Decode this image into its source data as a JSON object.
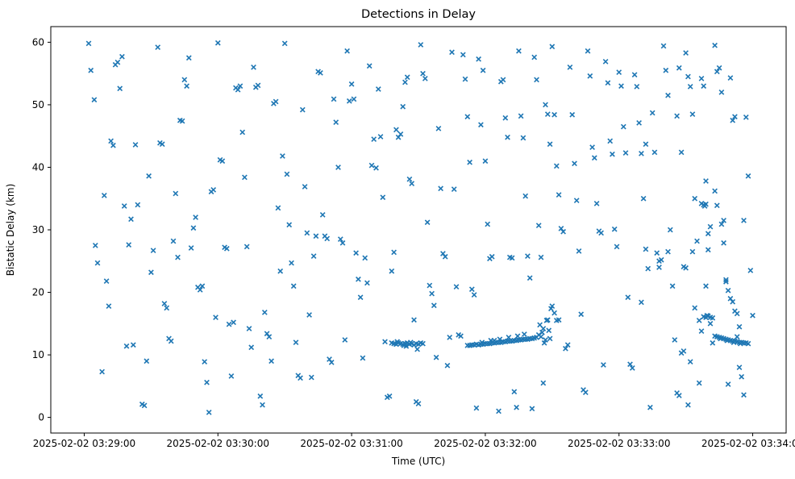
{
  "window": {
    "title": "Detections in Delay"
  },
  "chart_data": {
    "type": "scatter",
    "title": "Detections in Delay",
    "xlabel": "Time (UTC)",
    "ylabel": "Bistatic Delay (km)",
    "marker": "x",
    "marker_color": "#1f77b4",
    "background_color": "#ffffff",
    "grid": false,
    "legend": "none",
    "x_unit": "seconds after 2025-02-02 03:29:00 UTC",
    "xlim": [
      -15,
      315
    ],
    "ylim": [
      -2.5,
      62.5
    ],
    "x_ticks": [
      {
        "t": 0,
        "label": "2025-02-02 03:29:00"
      },
      {
        "t": 60,
        "label": "2025-02-02 03:30:00"
      },
      {
        "t": 120,
        "label": "2025-02-02 03:31:00"
      },
      {
        "t": 180,
        "label": "2025-02-02 03:32:00"
      },
      {
        "t": 240,
        "label": "2025-02-02 03:33:00"
      },
      {
        "t": 300,
        "label": "2025-02-02 03:34:00"
      }
    ],
    "y_ticks": [
      0,
      10,
      20,
      30,
      40,
      50,
      60
    ],
    "points": [
      [
        2,
        59.8
      ],
      [
        3,
        55.5
      ],
      [
        4.5,
        50.8
      ],
      [
        5,
        27.5
      ],
      [
        6,
        24.7
      ],
      [
        8,
        7.3
      ],
      [
        9,
        35.5
      ],
      [
        10,
        21.8
      ],
      [
        11,
        17.8
      ],
      [
        12,
        44.2
      ],
      [
        13,
        43.5
      ],
      [
        14,
        56.4
      ],
      [
        15,
        56.8
      ],
      [
        16,
        52.6
      ],
      [
        17,
        57.7
      ],
      [
        18,
        33.8
      ],
      [
        19,
        11.4
      ],
      [
        20,
        27.6
      ],
      [
        21,
        31.7
      ],
      [
        22,
        11.6
      ],
      [
        23,
        43.6
      ],
      [
        24,
        34
      ],
      [
        26,
        2.1
      ],
      [
        27,
        1.9
      ],
      [
        28,
        9
      ],
      [
        29,
        38.6
      ],
      [
        30,
        23.2
      ],
      [
        31,
        26.7
      ],
      [
        33,
        59.2
      ],
      [
        34,
        43.9
      ],
      [
        35,
        43.7
      ],
      [
        36,
        18.2
      ],
      [
        37,
        17.5
      ],
      [
        38,
        12.6
      ],
      [
        39,
        12.2
      ],
      [
        40,
        28.2
      ],
      [
        41,
        35.8
      ],
      [
        42,
        25.6
      ],
      [
        43,
        47.5
      ],
      [
        44,
        47.4
      ],
      [
        45,
        54
      ],
      [
        46,
        53
      ],
      [
        47,
        57.5
      ],
      [
        48,
        27.1
      ],
      [
        49,
        30.3
      ],
      [
        50,
        32
      ],
      [
        51,
        20.8
      ],
      [
        52,
        20.4
      ],
      [
        53,
        21
      ],
      [
        54,
        8.9
      ],
      [
        55,
        5.6
      ],
      [
        56,
        0.8
      ],
      [
        57,
        36.1
      ],
      [
        58,
        36.4
      ],
      [
        59,
        16
      ],
      [
        60,
        59.9
      ],
      [
        61,
        41.2
      ],
      [
        62,
        41
      ],
      [
        63,
        27.2
      ],
      [
        64,
        27
      ],
      [
        65,
        14.9
      ],
      [
        66,
        6.6
      ],
      [
        67,
        15.2
      ],
      [
        68,
        52.7
      ],
      [
        69,
        52.4
      ],
      [
        70,
        53
      ],
      [
        71,
        45.6
      ],
      [
        72,
        38.4
      ],
      [
        73,
        27.3
      ],
      [
        74,
        14.2
      ],
      [
        75,
        11.2
      ],
      [
        76,
        56
      ],
      [
        77,
        52.8
      ],
      [
        78,
        53.1
      ],
      [
        79,
        3.4
      ],
      [
        80,
        2
      ],
      [
        81,
        16.8
      ],
      [
        82,
        13.4
      ],
      [
        83,
        12.9
      ],
      [
        84,
        9
      ],
      [
        85,
        50.2
      ],
      [
        86,
        50.5
      ],
      [
        87,
        33.5
      ],
      [
        88,
        23.4
      ],
      [
        89,
        41.8
      ],
      [
        90,
        59.8
      ],
      [
        91,
        38.9
      ],
      [
        92,
        30.8
      ],
      [
        93,
        24.7
      ],
      [
        94,
        21
      ],
      [
        95,
        12
      ],
      [
        96,
        6.7
      ],
      [
        97,
        6.3
      ],
      [
        98,
        49.2
      ],
      [
        99,
        36.9
      ],
      [
        100,
        29.5
      ],
      [
        101,
        16.4
      ],
      [
        102,
        6.4
      ],
      [
        103,
        25.8
      ],
      [
        104,
        29
      ],
      [
        105,
        55.3
      ],
      [
        106,
        55.1
      ],
      [
        107,
        32.4
      ],
      [
        108,
        29
      ],
      [
        109,
        28.6
      ],
      [
        110,
        9.3
      ],
      [
        111,
        8.8
      ],
      [
        112,
        50.9
      ],
      [
        113,
        47.2
      ],
      [
        114,
        40
      ],
      [
        115,
        28.5
      ],
      [
        116,
        27.9
      ],
      [
        117,
        12.4
      ],
      [
        118,
        58.6
      ],
      [
        119,
        50.6
      ],
      [
        120,
        53.3
      ],
      [
        121,
        50.9
      ],
      [
        122,
        26.3
      ],
      [
        123,
        22.1
      ],
      [
        124,
        19.2
      ],
      [
        125,
        9.5
      ],
      [
        126,
        25.5
      ],
      [
        127,
        21.5
      ],
      [
        128,
        56.2
      ],
      [
        129,
        40.3
      ],
      [
        130,
        44.5
      ],
      [
        131,
        39.9
      ],
      [
        132,
        52.5
      ],
      [
        133,
        44.9
      ],
      [
        134,
        35.2
      ],
      [
        135,
        12.1
      ],
      [
        136,
        3.2
      ],
      [
        137,
        3.4
      ],
      [
        138,
        23.4
      ],
      [
        139,
        26.4
      ],
      [
        140,
        46
      ],
      [
        141,
        44.8
      ],
      [
        142,
        45.3
      ],
      [
        143,
        49.7
      ],
      [
        144,
        53.6
      ],
      [
        145,
        54.4
      ],
      [
        146,
        38.1
      ],
      [
        147,
        37.4
      ],
      [
        148,
        15.6
      ],
      [
        149,
        2.5
      ],
      [
        150,
        2.2
      ],
      [
        151,
        59.6
      ],
      [
        152,
        55
      ],
      [
        153,
        54.2
      ],
      [
        154,
        31.2
      ],
      [
        155,
        21.1
      ],
      [
        156,
        19.8
      ],
      [
        157,
        17.9
      ],
      [
        158,
        9.6
      ],
      [
        159,
        46.2
      ],
      [
        160,
        36.6
      ],
      [
        161,
        26.2
      ],
      [
        162,
        25.7
      ],
      [
        163,
        8.3
      ],
      [
        164,
        12.8
      ],
      [
        165,
        58.4
      ],
      [
        166,
        36.5
      ],
      [
        167,
        20.9
      ],
      [
        168,
        13.2
      ],
      [
        169,
        13
      ],
      [
        170,
        58
      ],
      [
        171,
        54.1
      ],
      [
        172,
        48.1
      ],
      [
        173,
        40.8
      ],
      [
        174,
        20.5
      ],
      [
        175,
        19.6
      ],
      [
        176,
        1.5
      ],
      [
        177,
        57.3
      ],
      [
        178,
        46.8
      ],
      [
        179,
        55.5
      ],
      [
        180,
        41
      ],
      [
        181,
        30.9
      ],
      [
        182,
        25.4
      ],
      [
        183,
        25.7
      ],
      [
        184,
        12.3
      ],
      [
        186,
        1
      ],
      [
        187,
        53.7
      ],
      [
        188,
        54
      ],
      [
        189,
        47.9
      ],
      [
        190,
        44.8
      ],
      [
        191,
        25.6
      ],
      [
        192,
        25.5
      ],
      [
        193,
        4.1
      ],
      [
        194,
        1.6
      ],
      [
        195,
        58.6
      ],
      [
        196,
        48.2
      ],
      [
        197,
        44.7
      ],
      [
        198,
        35.4
      ],
      [
        199,
        25.8
      ],
      [
        200,
        22.3
      ],
      [
        201,
        1.4
      ],
      [
        202,
        57.6
      ],
      [
        203,
        54
      ],
      [
        204,
        30.7
      ],
      [
        205,
        25.6
      ],
      [
        206,
        5.5
      ],
      [
        207,
        50
      ],
      [
        208,
        48.5
      ],
      [
        209,
        43.7
      ],
      [
        210,
        59.3
      ],
      [
        211,
        48.4
      ],
      [
        212,
        40.2
      ],
      [
        213,
        35.6
      ],
      [
        214,
        30.2
      ],
      [
        215,
        29.7
      ],
      [
        216,
        11
      ],
      [
        217,
        11.6
      ],
      [
        218,
        56
      ],
      [
        219,
        48.4
      ],
      [
        220,
        40.6
      ],
      [
        221,
        34.7
      ],
      [
        222,
        26.6
      ],
      [
        223,
        16.5
      ],
      [
        224,
        4.4
      ],
      [
        225,
        4
      ],
      [
        226,
        58.6
      ],
      [
        227,
        54.6
      ],
      [
        228,
        43.2
      ],
      [
        229,
        41.5
      ],
      [
        230,
        34.2
      ],
      [
        231,
        29.8
      ],
      [
        232,
        29.5
      ],
      [
        233,
        8.4
      ],
      [
        234,
        56.9
      ],
      [
        235,
        53.5
      ],
      [
        236,
        44.2
      ],
      [
        237,
        42.1
      ],
      [
        238,
        30.1
      ],
      [
        239,
        27.3
      ],
      [
        240,
        55.2
      ],
      [
        241,
        53
      ],
      [
        242,
        46.5
      ],
      [
        243,
        42.3
      ],
      [
        244,
        19.2
      ],
      [
        245,
        8.5
      ],
      [
        246,
        7.9
      ],
      [
        247,
        54.8
      ],
      [
        248,
        52.9
      ],
      [
        249,
        47.1
      ],
      [
        250,
        42.2
      ],
      [
        251,
        35
      ],
      [
        252,
        26.9
      ],
      [
        253,
        23.8
      ],
      [
        254,
        1.6
      ],
      [
        255,
        48.7
      ],
      [
        256,
        42.4
      ],
      [
        257,
        26.3
      ],
      [
        258,
        25
      ],
      [
        259,
        25.2
      ],
      [
        260,
        59.4
      ],
      [
        261,
        55.5
      ],
      [
        262,
        51.5
      ],
      [
        263,
        30
      ],
      [
        264,
        21
      ],
      [
        265,
        12.4
      ],
      [
        266,
        48.2
      ],
      [
        267,
        55.9
      ],
      [
        268,
        42.4
      ],
      [
        269,
        24.1
      ],
      [
        270,
        58.3
      ],
      [
        271,
        54.5
      ],
      [
        272,
        52.9
      ],
      [
        273,
        48.5
      ],
      [
        274,
        35
      ],
      [
        275,
        28.2
      ],
      [
        276,
        5.5
      ],
      [
        277,
        54.2
      ],
      [
        278,
        53
      ],
      [
        279,
        37.8
      ],
      [
        280,
        29.4
      ],
      [
        281,
        15
      ],
      [
        282,
        11.9
      ],
      [
        283,
        59.5
      ],
      [
        284,
        55.3
      ],
      [
        285,
        55.9
      ],
      [
        286,
        52
      ],
      [
        287,
        31.5
      ],
      [
        288,
        21.7
      ],
      [
        289,
        5.3
      ],
      [
        290,
        54.3
      ],
      [
        291,
        47.5
      ],
      [
        292,
        48.1
      ],
      [
        293,
        16.6
      ],
      [
        294,
        14.5
      ],
      [
        296,
        3.6
      ],
      [
        252,
        43.7
      ],
      [
        250,
        18.4
      ],
      [
        258,
        24
      ],
      [
        262,
        26.5
      ],
      [
        268,
        10.3
      ],
      [
        269,
        10.6
      ],
      [
        266,
        3.9
      ],
      [
        267,
        3.5
      ],
      [
        271,
        2
      ],
      [
        272,
        8.9
      ],
      [
        270,
        23.9
      ],
      [
        273,
        26.5
      ],
      [
        274,
        17.5
      ],
      [
        276,
        15.5
      ],
      [
        277,
        13.8
      ],
      [
        279,
        21
      ],
      [
        280,
        26.8
      ],
      [
        281,
        30.5
      ],
      [
        283,
        36.2
      ],
      [
        284,
        33.9
      ],
      [
        286,
        30.9
      ],
      [
        287,
        27.9
      ],
      [
        288,
        22
      ],
      [
        289,
        20.3
      ],
      [
        290,
        19
      ],
      [
        291,
        18.5
      ],
      [
        292,
        17
      ],
      [
        293,
        12.9
      ],
      [
        294,
        8
      ],
      [
        295,
        6.5
      ],
      [
        296,
        31.5
      ],
      [
        297,
        48
      ],
      [
        298,
        38.6
      ],
      [
        299,
        23.5
      ],
      [
        300,
        16.3
      ],
      [
        138,
        11.9
      ],
      [
        139,
        11.8
      ],
      [
        140,
        11.7
      ],
      [
        140.5,
        12.1
      ],
      [
        141,
        11.9
      ],
      [
        142,
        11.8
      ],
      [
        143,
        11.7
      ],
      [
        143.5,
        11.5
      ],
      [
        144,
        11.8
      ],
      [
        144.5,
        11.4
      ],
      [
        145,
        11.9
      ],
      [
        146,
        11.7
      ],
      [
        146.5,
        12
      ],
      [
        147,
        11.8
      ],
      [
        148,
        11.6
      ],
      [
        149,
        11.8
      ],
      [
        149.5,
        10.9
      ],
      [
        150,
        11.7
      ],
      [
        151,
        11.9
      ],
      [
        152,
        11.8
      ],
      [
        172,
        11.5
      ],
      [
        173,
        11.5
      ],
      [
        174,
        11.6
      ],
      [
        175,
        11.6
      ],
      [
        176,
        11.7
      ],
      [
        177,
        11.6
      ],
      [
        178,
        11.7
      ],
      [
        178.5,
        12
      ],
      [
        179,
        11.7
      ],
      [
        180,
        11.8
      ],
      [
        181,
        11.8
      ],
      [
        182,
        11.8
      ],
      [
        182.5,
        12.3
      ],
      [
        183,
        11.9
      ],
      [
        184,
        11.9
      ],
      [
        185,
        12
      ],
      [
        186,
        12
      ],
      [
        186.5,
        12.5
      ],
      [
        187,
        12
      ],
      [
        188,
        12.1
      ],
      [
        189,
        12.1
      ],
      [
        190,
        12.2
      ],
      [
        190.5,
        12.8
      ],
      [
        191,
        12.2
      ],
      [
        192,
        12.2
      ],
      [
        193,
        12.3
      ],
      [
        194,
        12.3
      ],
      [
        194.5,
        13
      ],
      [
        195,
        12.4
      ],
      [
        196,
        12.4
      ],
      [
        197,
        12.5
      ],
      [
        197.5,
        13.3
      ],
      [
        198,
        12.5
      ],
      [
        199,
        12.5
      ],
      [
        200,
        12.6
      ],
      [
        201,
        12.6
      ],
      [
        202,
        12.7
      ],
      [
        203,
        12.8
      ],
      [
        204,
        13.2
      ],
      [
        204.5,
        14.8
      ],
      [
        205,
        12.9
      ],
      [
        205.5,
        13.6
      ],
      [
        206,
        14.2
      ],
      [
        206.5,
        11.9
      ],
      [
        207,
        12.4
      ],
      [
        207.5,
        15.5
      ],
      [
        208,
        15.6
      ],
      [
        208.5,
        13.9
      ],
      [
        209,
        12.6
      ],
      [
        209.5,
        17.4
      ],
      [
        210,
        17.8
      ],
      [
        211,
        16.7
      ],
      [
        212,
        15.5
      ],
      [
        213,
        15.6
      ],
      [
        283,
        13
      ],
      [
        284,
        12.9
      ],
      [
        285,
        12.8
      ],
      [
        285.5,
        12.6
      ],
      [
        286,
        12.7
      ],
      [
        287,
        12.6
      ],
      [
        288,
        12.5
      ],
      [
        288.5,
        12.3
      ],
      [
        289,
        12.4
      ],
      [
        290,
        12.3
      ],
      [
        291,
        12.2
      ],
      [
        291.5,
        12
      ],
      [
        292,
        12.2
      ],
      [
        293,
        12.1
      ],
      [
        294,
        12
      ],
      [
        294.5,
        11.8
      ],
      [
        295,
        12
      ],
      [
        296,
        11.9
      ],
      [
        297,
        11.9
      ],
      [
        298,
        11.8
      ],
      [
        278,
        16.1
      ],
      [
        279,
        16
      ],
      [
        279.5,
        16.3
      ],
      [
        280,
        16.2
      ],
      [
        281,
        16
      ],
      [
        282,
        15.9
      ],
      [
        277,
        34.2
      ],
      [
        278,
        34
      ],
      [
        278.5,
        33.8
      ],
      [
        279,
        34.1
      ]
    ]
  }
}
